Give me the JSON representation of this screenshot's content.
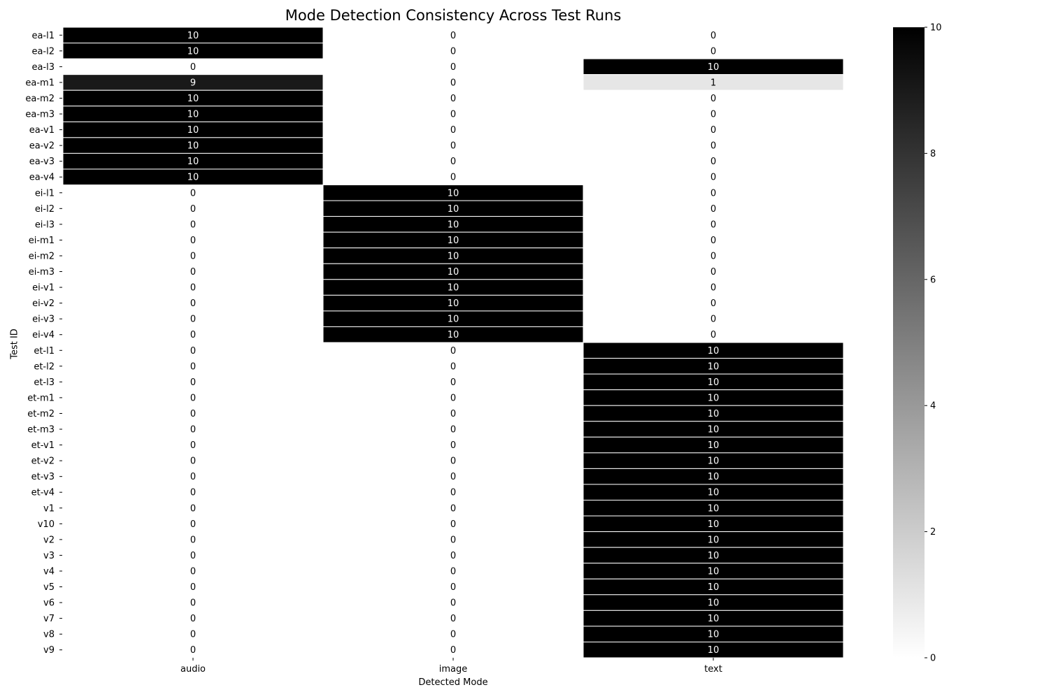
{
  "chart_data": {
    "type": "heatmap",
    "title": "Mode Detection Consistency Across Test Runs",
    "xlabel": "Detected Mode",
    "ylabel": "Test ID",
    "columns": [
      "audio",
      "image",
      "text"
    ],
    "rows": [
      "ea-l1",
      "ea-l2",
      "ea-l3",
      "ea-m1",
      "ea-m2",
      "ea-m3",
      "ea-v1",
      "ea-v2",
      "ea-v3",
      "ea-v4",
      "ei-l1",
      "ei-l2",
      "ei-l3",
      "ei-m1",
      "ei-m2",
      "ei-m3",
      "ei-v1",
      "ei-v2",
      "ei-v3",
      "ei-v4",
      "et-l1",
      "et-l2",
      "et-l3",
      "et-m1",
      "et-m2",
      "et-m3",
      "et-v1",
      "et-v2",
      "et-v3",
      "et-v4",
      "v1",
      "v10",
      "v2",
      "v3",
      "v4",
      "v5",
      "v6",
      "v7",
      "v8",
      "v9"
    ],
    "values": [
      [
        10,
        0,
        0
      ],
      [
        10,
        0,
        0
      ],
      [
        0,
        0,
        10
      ],
      [
        9,
        0,
        1
      ],
      [
        10,
        0,
        0
      ],
      [
        10,
        0,
        0
      ],
      [
        10,
        0,
        0
      ],
      [
        10,
        0,
        0
      ],
      [
        10,
        0,
        0
      ],
      [
        10,
        0,
        0
      ],
      [
        0,
        10,
        0
      ],
      [
        0,
        10,
        0
      ],
      [
        0,
        10,
        0
      ],
      [
        0,
        10,
        0
      ],
      [
        0,
        10,
        0
      ],
      [
        0,
        10,
        0
      ],
      [
        0,
        10,
        0
      ],
      [
        0,
        10,
        0
      ],
      [
        0,
        10,
        0
      ],
      [
        0,
        10,
        0
      ],
      [
        0,
        0,
        10
      ],
      [
        0,
        0,
        10
      ],
      [
        0,
        0,
        10
      ],
      [
        0,
        0,
        10
      ],
      [
        0,
        0,
        10
      ],
      [
        0,
        0,
        10
      ],
      [
        0,
        0,
        10
      ],
      [
        0,
        0,
        10
      ],
      [
        0,
        0,
        10
      ],
      [
        0,
        0,
        10
      ],
      [
        0,
        0,
        10
      ],
      [
        0,
        0,
        10
      ],
      [
        0,
        0,
        10
      ],
      [
        0,
        0,
        10
      ],
      [
        0,
        0,
        10
      ],
      [
        0,
        0,
        10
      ],
      [
        0,
        0,
        10
      ],
      [
        0,
        0,
        10
      ],
      [
        0,
        0,
        10
      ],
      [
        0,
        0,
        10
      ]
    ],
    "colorscale": {
      "min": 0,
      "max": 10,
      "low_color": "#ffffff",
      "high_color": "#000000",
      "ticks": [
        0,
        2,
        4,
        6,
        8,
        10
      ]
    },
    "annotations": true
  }
}
